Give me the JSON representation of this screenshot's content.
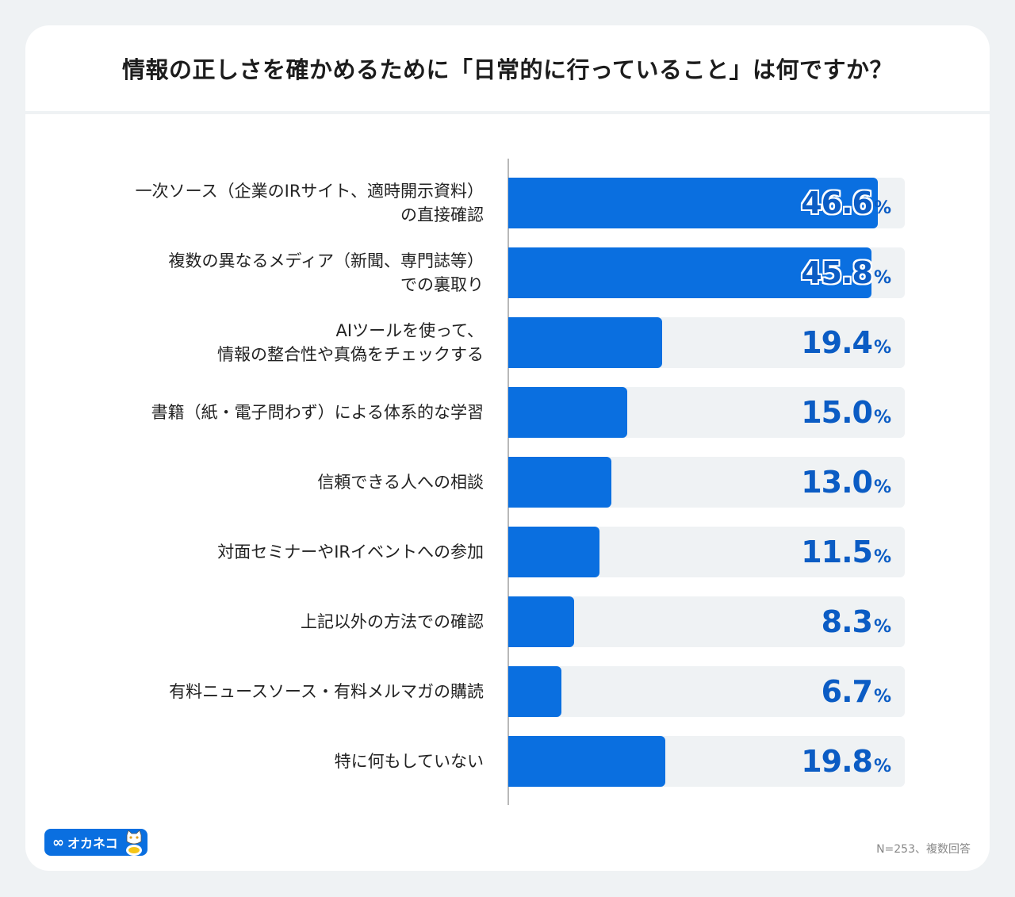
{
  "title": "情報の正しさを確かめるために「日常的に行っていること」は何ですか？",
  "chart_data": {
    "type": "bar",
    "orientation": "horizontal",
    "title": "情報の正しさを確かめるために「日常的に行っていること」は何ですか？",
    "categories": [
      "一次ソース（企業のIRサイト、適時開示資料）\nの直接確認",
      "複数の異なるメディア（新聞、専門誌等）\nでの裏取り",
      "AIツールを使って、\n情報の整合性や真偽をチェックする",
      "書籍（紙・電子問わず）による体系的な学習",
      "信頼できる人への相談",
      "対面セミナーやIRイベントへの参加",
      "上記以外の方法での確認",
      "有料ニュースソース・有料メルマガの購読",
      "特に何もしていない"
    ],
    "values": [
      46.6,
      45.8,
      19.4,
      15.0,
      13.0,
      11.5,
      8.3,
      6.7,
      19.8
    ],
    "value_labels": [
      "46.6",
      "45.8",
      "19.4",
      "15.0",
      "13.0",
      "11.5",
      "8.3",
      "6.7",
      "19.8"
    ],
    "unit": "%",
    "xlim": [
      0,
      50
    ],
    "grid": false,
    "bar_color": "#0a6fe0",
    "track_color": "#eff2f4",
    "label_color": "#0b5cc4"
  },
  "logo": {
    "text": "オカネコ"
  },
  "footnote": "N=253、複数回答"
}
